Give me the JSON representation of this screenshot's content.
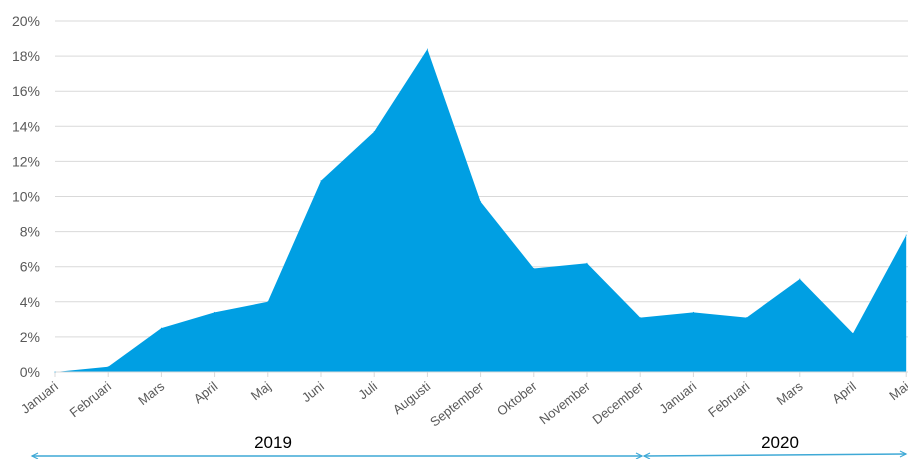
{
  "chart_data": {
    "type": "area",
    "title": "",
    "xlabel": "",
    "ylabel": "",
    "categories": [
      "Januari",
      "Februari",
      "Mars",
      "April",
      "Maj",
      "Juni",
      "Juli",
      "Augusti",
      "September",
      "Oktober",
      "November",
      "December",
      "Januari",
      "Februari",
      "Mars",
      "April",
      "Maj"
    ],
    "series": [
      {
        "values": [
          0.0,
          0.3,
          2.5,
          3.4,
          4.0,
          10.9,
          13.7,
          18.4,
          9.7,
          5.9,
          6.2,
          3.1,
          3.4,
          3.1,
          5.3,
          2.2,
          7.8
        ]
      }
    ],
    "ylim": [
      0,
      20
    ],
    "yticks": [
      "0%",
      "2%",
      "4%",
      "6%",
      "8%",
      "10%",
      "12%",
      "14%",
      "16%",
      "18%",
      "20%"
    ],
    "year_groups": [
      {
        "label": "2019",
        "from": 0,
        "to": 11
      },
      {
        "label": "2020",
        "from": 12,
        "to": 16
      }
    ],
    "grid": true,
    "colors": {
      "fill": "#009FE3",
      "grid": "#D9D9D9",
      "bracket": "#3FA9D6"
    }
  }
}
